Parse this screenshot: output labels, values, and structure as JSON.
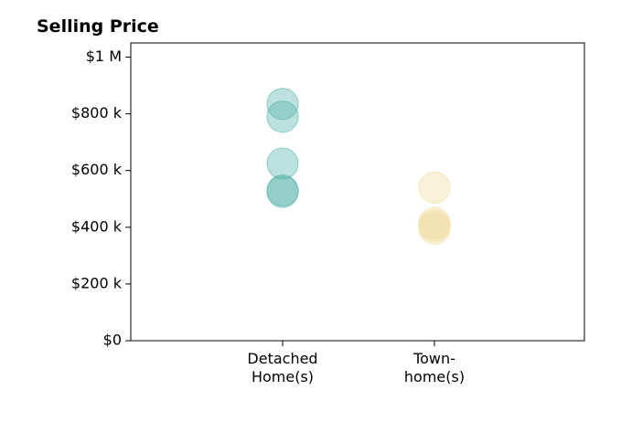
{
  "chart_data": {
    "type": "scatter",
    "title": "Selling Price",
    "xlabel": "",
    "ylabel": "",
    "categories": [
      [
        "Detached",
        "Home(s)"
      ],
      [
        "Town-",
        "home(s)"
      ]
    ],
    "ylim": [
      0,
      1050000
    ],
    "y_ticks": [
      {
        "value": 0,
        "label": "$0"
      },
      {
        "value": 200000,
        "label": "$200 k"
      },
      {
        "value": 400000,
        "label": "$400 k"
      },
      {
        "value": 600000,
        "label": "$600 k"
      },
      {
        "value": 800000,
        "label": "$800 k"
      },
      {
        "value": 1000000,
        "label": "$1 M"
      }
    ],
    "series": [
      {
        "category_index": 0,
        "color": "#5ab4ac",
        "values": [
          835000,
          790000,
          625000,
          530000,
          525000
        ]
      },
      {
        "category_index": 1,
        "color": "#f0dca0",
        "values": [
          540000,
          415000,
          405000,
          395000
        ]
      }
    ],
    "grid": false,
    "legend": "none"
  }
}
